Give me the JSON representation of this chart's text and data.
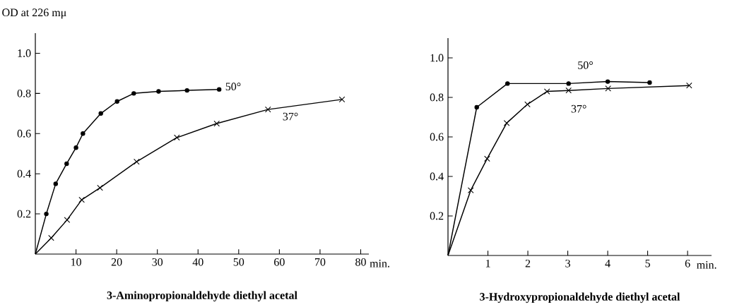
{
  "chart_data": [
    {
      "type": "line",
      "title": "3-Aminopropionaldehyde diethyl acetal",
      "ylabel": "OD at 226 mμ",
      "xlabel": "min.",
      "xlim": [
        0,
        82
      ],
      "ylim": [
        0,
        1.1
      ],
      "xticks": [
        10,
        20,
        30,
        40,
        50,
        60,
        70,
        80
      ],
      "yticks": [
        0.2,
        0.4,
        0.6,
        0.8,
        {
          "value": 1,
          "label": "1.0"
        }
      ],
      "series": [
        {
          "name": "50°",
          "color": "#000000",
          "marker": "circle",
          "x": [
            0,
            2.7,
            5.0,
            7.7,
            10.0,
            11.7,
            16.1,
            20.1,
            24.2,
            30.3,
            37.3,
            45.2
          ],
          "values": [
            0,
            0.2,
            0.35,
            0.45,
            0.53,
            0.6,
            0.7,
            0.76,
            0.8,
            0.81,
            0.815,
            0.82
          ]
        },
        {
          "name": "37°",
          "color": "#000000",
          "marker": "cross",
          "x": [
            0,
            3.9,
            7.8,
            11.4,
            15.9,
            24.9,
            34.8,
            44.6,
            57.2,
            75.4
          ],
          "values": [
            0,
            0.08,
            0.17,
            0.27,
            0.33,
            0.46,
            0.58,
            0.65,
            0.72,
            0.77
          ]
        }
      ]
    },
    {
      "type": "line",
      "title": "3-Hydroxypropionaldehyde diethyl acetal",
      "xlabel": "min.",
      "xlim": [
        0,
        6.6
      ],
      "ylim": [
        0,
        1.1
      ],
      "xticks": [
        1,
        2,
        3,
        4,
        5,
        6
      ],
      "yticks": [
        0.2,
        0.4,
        0.6,
        0.8,
        {
          "value": 1,
          "label": "1.0"
        }
      ],
      "series": [
        {
          "name": "50°",
          "color": "#000000",
          "marker": "circle",
          "x": [
            0,
            0.72,
            1.49,
            3.02,
            4.0,
            5.05
          ],
          "values": [
            0,
            0.75,
            0.87,
            0.87,
            0.88,
            0.875
          ]
        },
        {
          "name": "37°",
          "color": "#000000",
          "marker": "cross",
          "x": [
            0,
            0.57,
            0.98,
            1.47,
            1.99,
            2.48,
            3.02,
            4.01,
            6.04
          ],
          "values": [
            0,
            0.33,
            0.49,
            0.67,
            0.765,
            0.83,
            0.835,
            0.845,
            0.86
          ]
        }
      ]
    }
  ]
}
